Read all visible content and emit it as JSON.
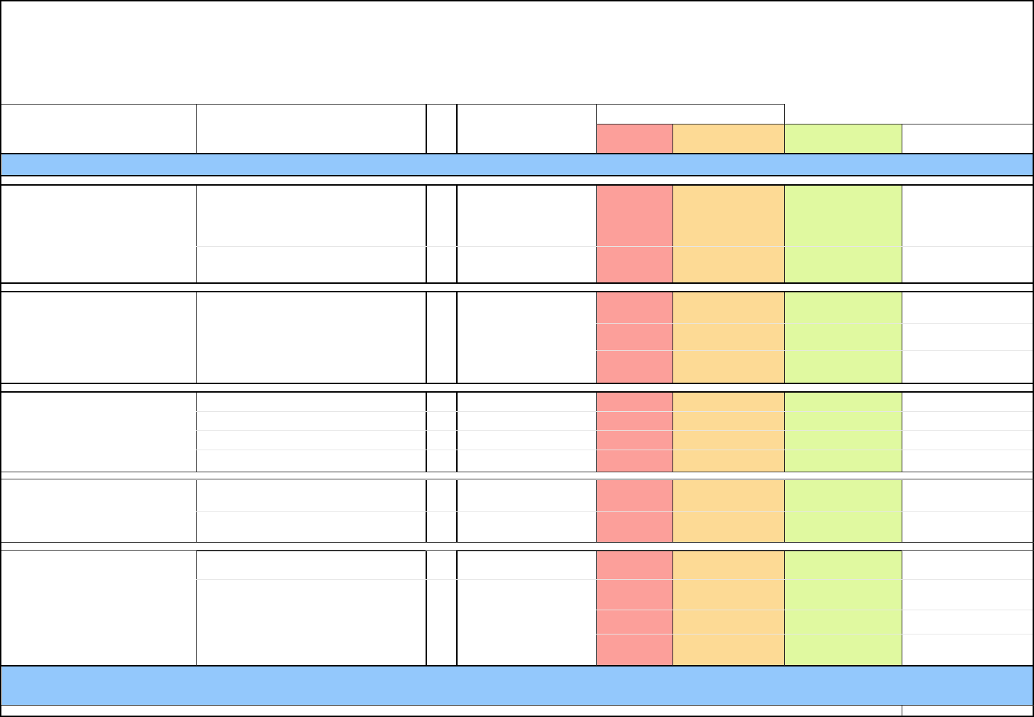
{
  "title": "",
  "colors": {
    "page": "#ffffff",
    "section_header": "#93c8fc",
    "rating_red": "#fc9f9a",
    "rating_orange": "#fdda95",
    "rating_green": "#e0f9a0",
    "grid": "#000000"
  },
  "header": {
    "cells": []
  },
  "sections": [
    {
      "name": "",
      "rows": []
    },
    {
      "name": "",
      "rows": []
    },
    {
      "name": "",
      "rows": []
    },
    {
      "name": "",
      "rows": []
    },
    {
      "name": "",
      "rows": []
    }
  ],
  "footer": {
    "label": ""
  }
}
